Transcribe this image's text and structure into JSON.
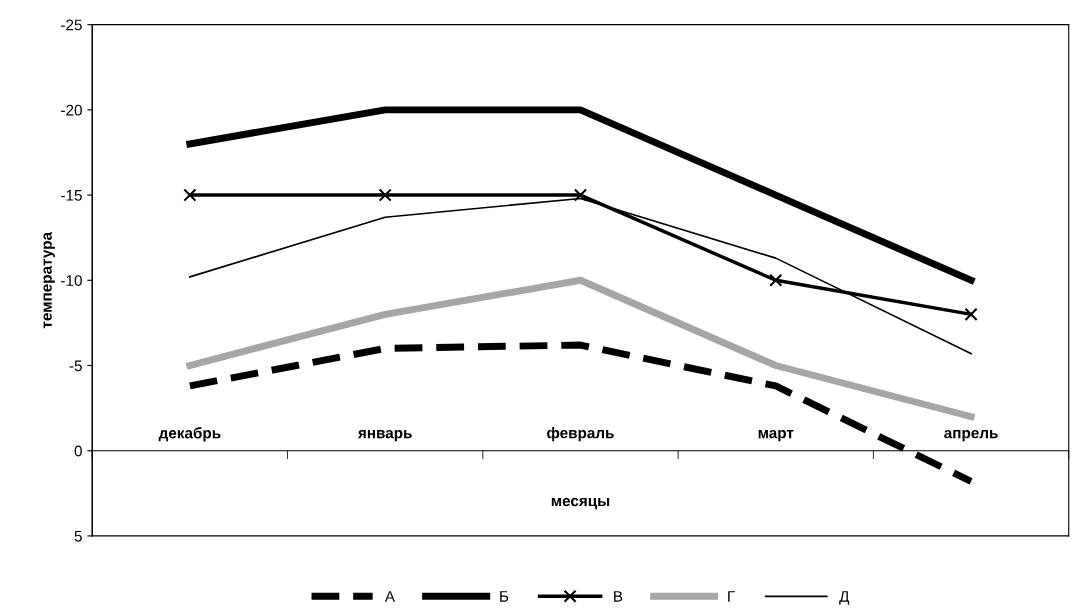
{
  "chart_data": {
    "type": "line",
    "xlabel": "месяцы",
    "ylabel": "температура",
    "categories": [
      "декабрь",
      "январь",
      "февраль",
      "март",
      "апрель"
    ],
    "series": [
      {
        "name": "А",
        "color": "#000000",
        "line_style": "dashed",
        "values": [
          -3.8,
          -6,
          -6.2,
          -3.8,
          1.8
        ]
      },
      {
        "name": "Б",
        "color": "#000000",
        "values": [
          -18,
          -20,
          -20,
          -15,
          -10
        ]
      },
      {
        "name": "В",
        "color": "#000000",
        "marker": "cross",
        "values": [
          -15,
          -15,
          -15,
          -10,
          -8
        ]
      },
      {
        "name": "Г",
        "color": "#a6a6a6",
        "values": [
          -5,
          -8,
          -10,
          -5,
          -2
        ]
      },
      {
        "name": "Д",
        "color": "#000000",
        "values": [
          -10.2,
          -13.7,
          -14.8,
          -11.3,
          -5.7
        ]
      }
    ],
    "ylim": [
      5,
      -25
    ],
    "yticks": [
      -25,
      -20,
      -15,
      -10,
      -5,
      0,
      5
    ],
    "grid": false,
    "legend": "bottom"
  }
}
